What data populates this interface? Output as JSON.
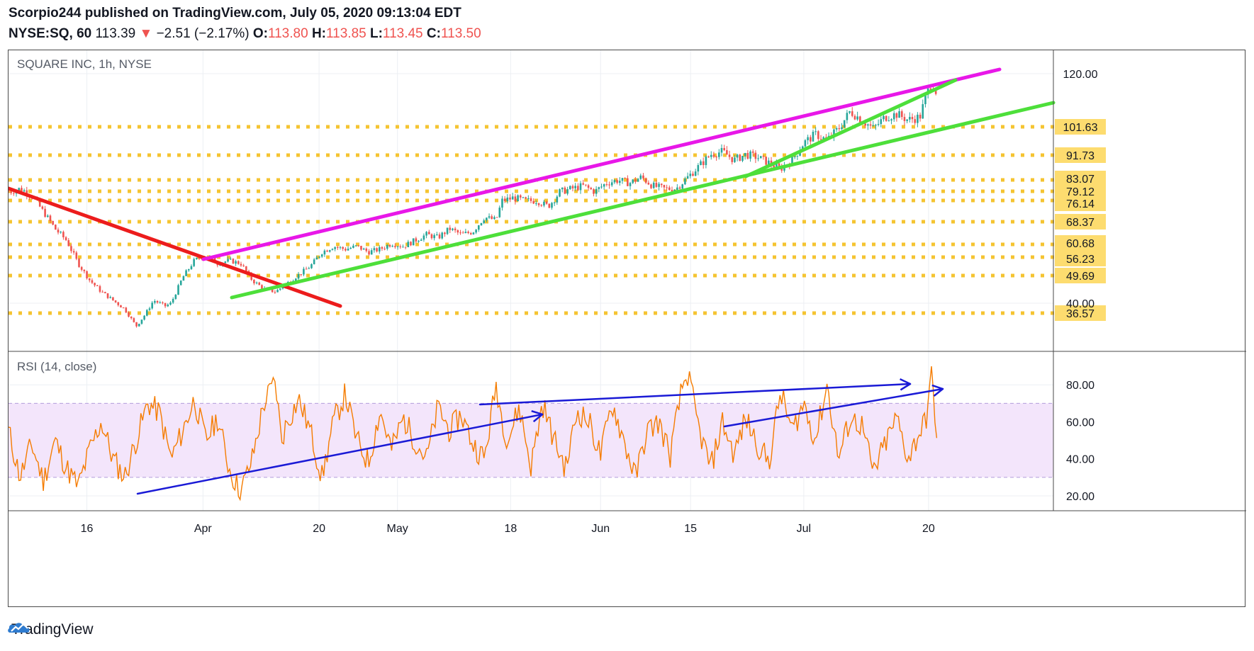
{
  "header": {
    "line1": "Scorpio244 published on TradingView.com, July 05, 2020 09:13:04 EDT",
    "symbol": "NYSE:SQ, 60",
    "last": "113.39",
    "arrow": "▼",
    "change": "−2.51 (−2.17%)",
    "o_label": "O:",
    "o_val": "113.80",
    "h_label": "H:",
    "h_val": "113.85",
    "l_label": "L:",
    "l_val": "113.45",
    "c_label": "C:",
    "c_val": "113.50"
  },
  "footer": {
    "brand": "TradingView"
  },
  "colors": {
    "candle_up": "#26a69a",
    "candle_down": "#ef5350",
    "level": "#f5c431",
    "level_label_bg": "#fddc6f",
    "magenta": "#e817e8",
    "green": "#4ddf3a",
    "red": "#ec1c1c",
    "rsi": "#f57c00",
    "rsi_band": "#f3e5fb",
    "blue": "#1a1ad6"
  },
  "chart_data": [
    {
      "type": "candlestick",
      "title": "SQUARE INC, 1h, NYSE",
      "ylim": [
        20,
        126
      ],
      "price_ticks": [
        "120.00",
        "40.00"
      ],
      "x_ticks": [
        "16",
        "Apr",
        "20",
        "May",
        "18",
        "Jun",
        "15",
        "Jul",
        "20"
      ],
      "levels": [
        "101.63",
        "91.73",
        "83.07",
        "79.12",
        "76.14",
        "68.37",
        "60.68",
        "56.23",
        "49.69",
        "36.57"
      ],
      "close_path": [
        [
          0,
          79
        ],
        [
          2,
          80
        ],
        [
          4,
          78
        ],
        [
          6,
          72
        ],
        [
          8,
          66
        ],
        [
          10,
          62
        ],
        [
          12,
          54
        ],
        [
          14,
          48
        ],
        [
          16,
          44
        ],
        [
          18,
          41
        ],
        [
          20,
          38
        ],
        [
          22,
          32
        ],
        [
          23.5,
          36
        ],
        [
          25,
          41
        ],
        [
          27,
          39
        ],
        [
          28,
          40
        ],
        [
          30,
          49
        ],
        [
          32,
          55
        ],
        [
          34,
          57
        ],
        [
          36,
          54
        ],
        [
          38,
          55
        ],
        [
          40,
          54
        ],
        [
          42,
          48
        ],
        [
          44,
          45
        ],
        [
          46,
          44
        ],
        [
          48,
          47
        ],
        [
          50,
          50
        ],
        [
          52,
          53
        ],
        [
          54,
          58
        ],
        [
          56,
          60
        ],
        [
          58,
          59
        ],
        [
          60,
          60
        ],
        [
          62,
          58
        ],
        [
          64,
          59
        ],
        [
          66,
          61
        ],
        [
          68,
          60
        ],
        [
          70,
          62
        ],
        [
          72,
          64
        ],
        [
          74,
          63
        ],
        [
          76,
          66
        ],
        [
          78,
          64
        ],
        [
          80,
          65
        ],
        [
          82,
          70
        ],
        [
          84,
          69
        ],
        [
          85,
          76
        ],
        [
          87,
          77
        ],
        [
          89,
          76
        ],
        [
          91,
          76
        ],
        [
          93,
          74
        ],
        [
          95,
          79
        ],
        [
          97,
          80
        ],
        [
          99,
          81
        ],
        [
          101,
          79
        ],
        [
          103,
          82
        ],
        [
          105,
          83
        ],
        [
          107,
          82
        ],
        [
          109,
          84
        ],
        [
          111,
          81
        ],
        [
          113,
          80
        ],
        [
          115,
          80
        ],
        [
          117,
          84
        ],
        [
          119,
          88
        ],
        [
          121,
          92
        ],
        [
          123,
          93
        ],
        [
          125,
          90
        ],
        [
          127,
          92
        ],
        [
          129,
          91
        ],
        [
          131,
          89
        ],
        [
          133,
          87
        ],
        [
          135,
          90
        ],
        [
          137,
          96
        ],
        [
          139,
          99
        ],
        [
          141,
          97
        ],
        [
          143,
          101
        ],
        [
          145,
          107
        ],
        [
          147,
          104
        ],
        [
          149,
          101
        ],
        [
          151,
          105
        ],
        [
          153,
          106
        ],
        [
          155,
          104
        ],
        [
          157,
          105
        ],
        [
          158,
          112
        ],
        [
          159,
          117
        ],
        [
          160,
          113
        ]
      ]
    },
    {
      "type": "line",
      "title": "RSI (14, close)",
      "ylim": [
        15,
        95
      ],
      "y_ticks": [
        "80.00",
        "60.00",
        "40.00",
        "20.00"
      ],
      "band": [
        30,
        70
      ],
      "x": [
        0,
        2,
        4,
        6,
        8,
        10,
        12,
        14,
        16,
        18,
        20,
        22,
        24,
        26,
        28,
        30,
        32,
        34,
        36,
        38,
        39,
        40,
        42,
        44,
        46,
        47,
        48,
        50,
        52,
        54,
        56,
        58,
        60,
        62,
        64,
        66,
        68,
        70,
        72,
        74,
        76,
        78,
        80,
        82,
        84,
        85,
        86,
        88,
        90,
        92,
        94,
        96,
        98,
        100,
        102,
        104,
        106,
        108,
        110,
        112,
        114,
        116,
        117,
        119,
        121,
        123,
        125,
        127,
        129,
        131,
        133,
        135,
        137,
        139,
        141,
        143,
        145,
        147,
        149,
        151,
        153,
        155,
        157,
        158,
        159,
        160
      ],
      "values": [
        55,
        30,
        48,
        28,
        50,
        35,
        25,
        45,
        60,
        40,
        30,
        50,
        70,
        65,
        40,
        55,
        72,
        50,
        62,
        35,
        28,
        22,
        40,
        70,
        82,
        50,
        60,
        72,
        55,
        30,
        60,
        75,
        50,
        38,
        66,
        45,
        62,
        50,
        40,
        68,
        55,
        64,
        48,
        40,
        80,
        62,
        50,
        68,
        36,
        70,
        50,
        35,
        66,
        60,
        42,
        70,
        50,
        30,
        55,
        60,
        42,
        78,
        86,
        55,
        35,
        60,
        42,
        62,
        48,
        38,
        76,
        55,
        70,
        50,
        80,
        40,
        62,
        58,
        32,
        48,
        62,
        40,
        55,
        60,
        86,
        50
      ]
    }
  ]
}
